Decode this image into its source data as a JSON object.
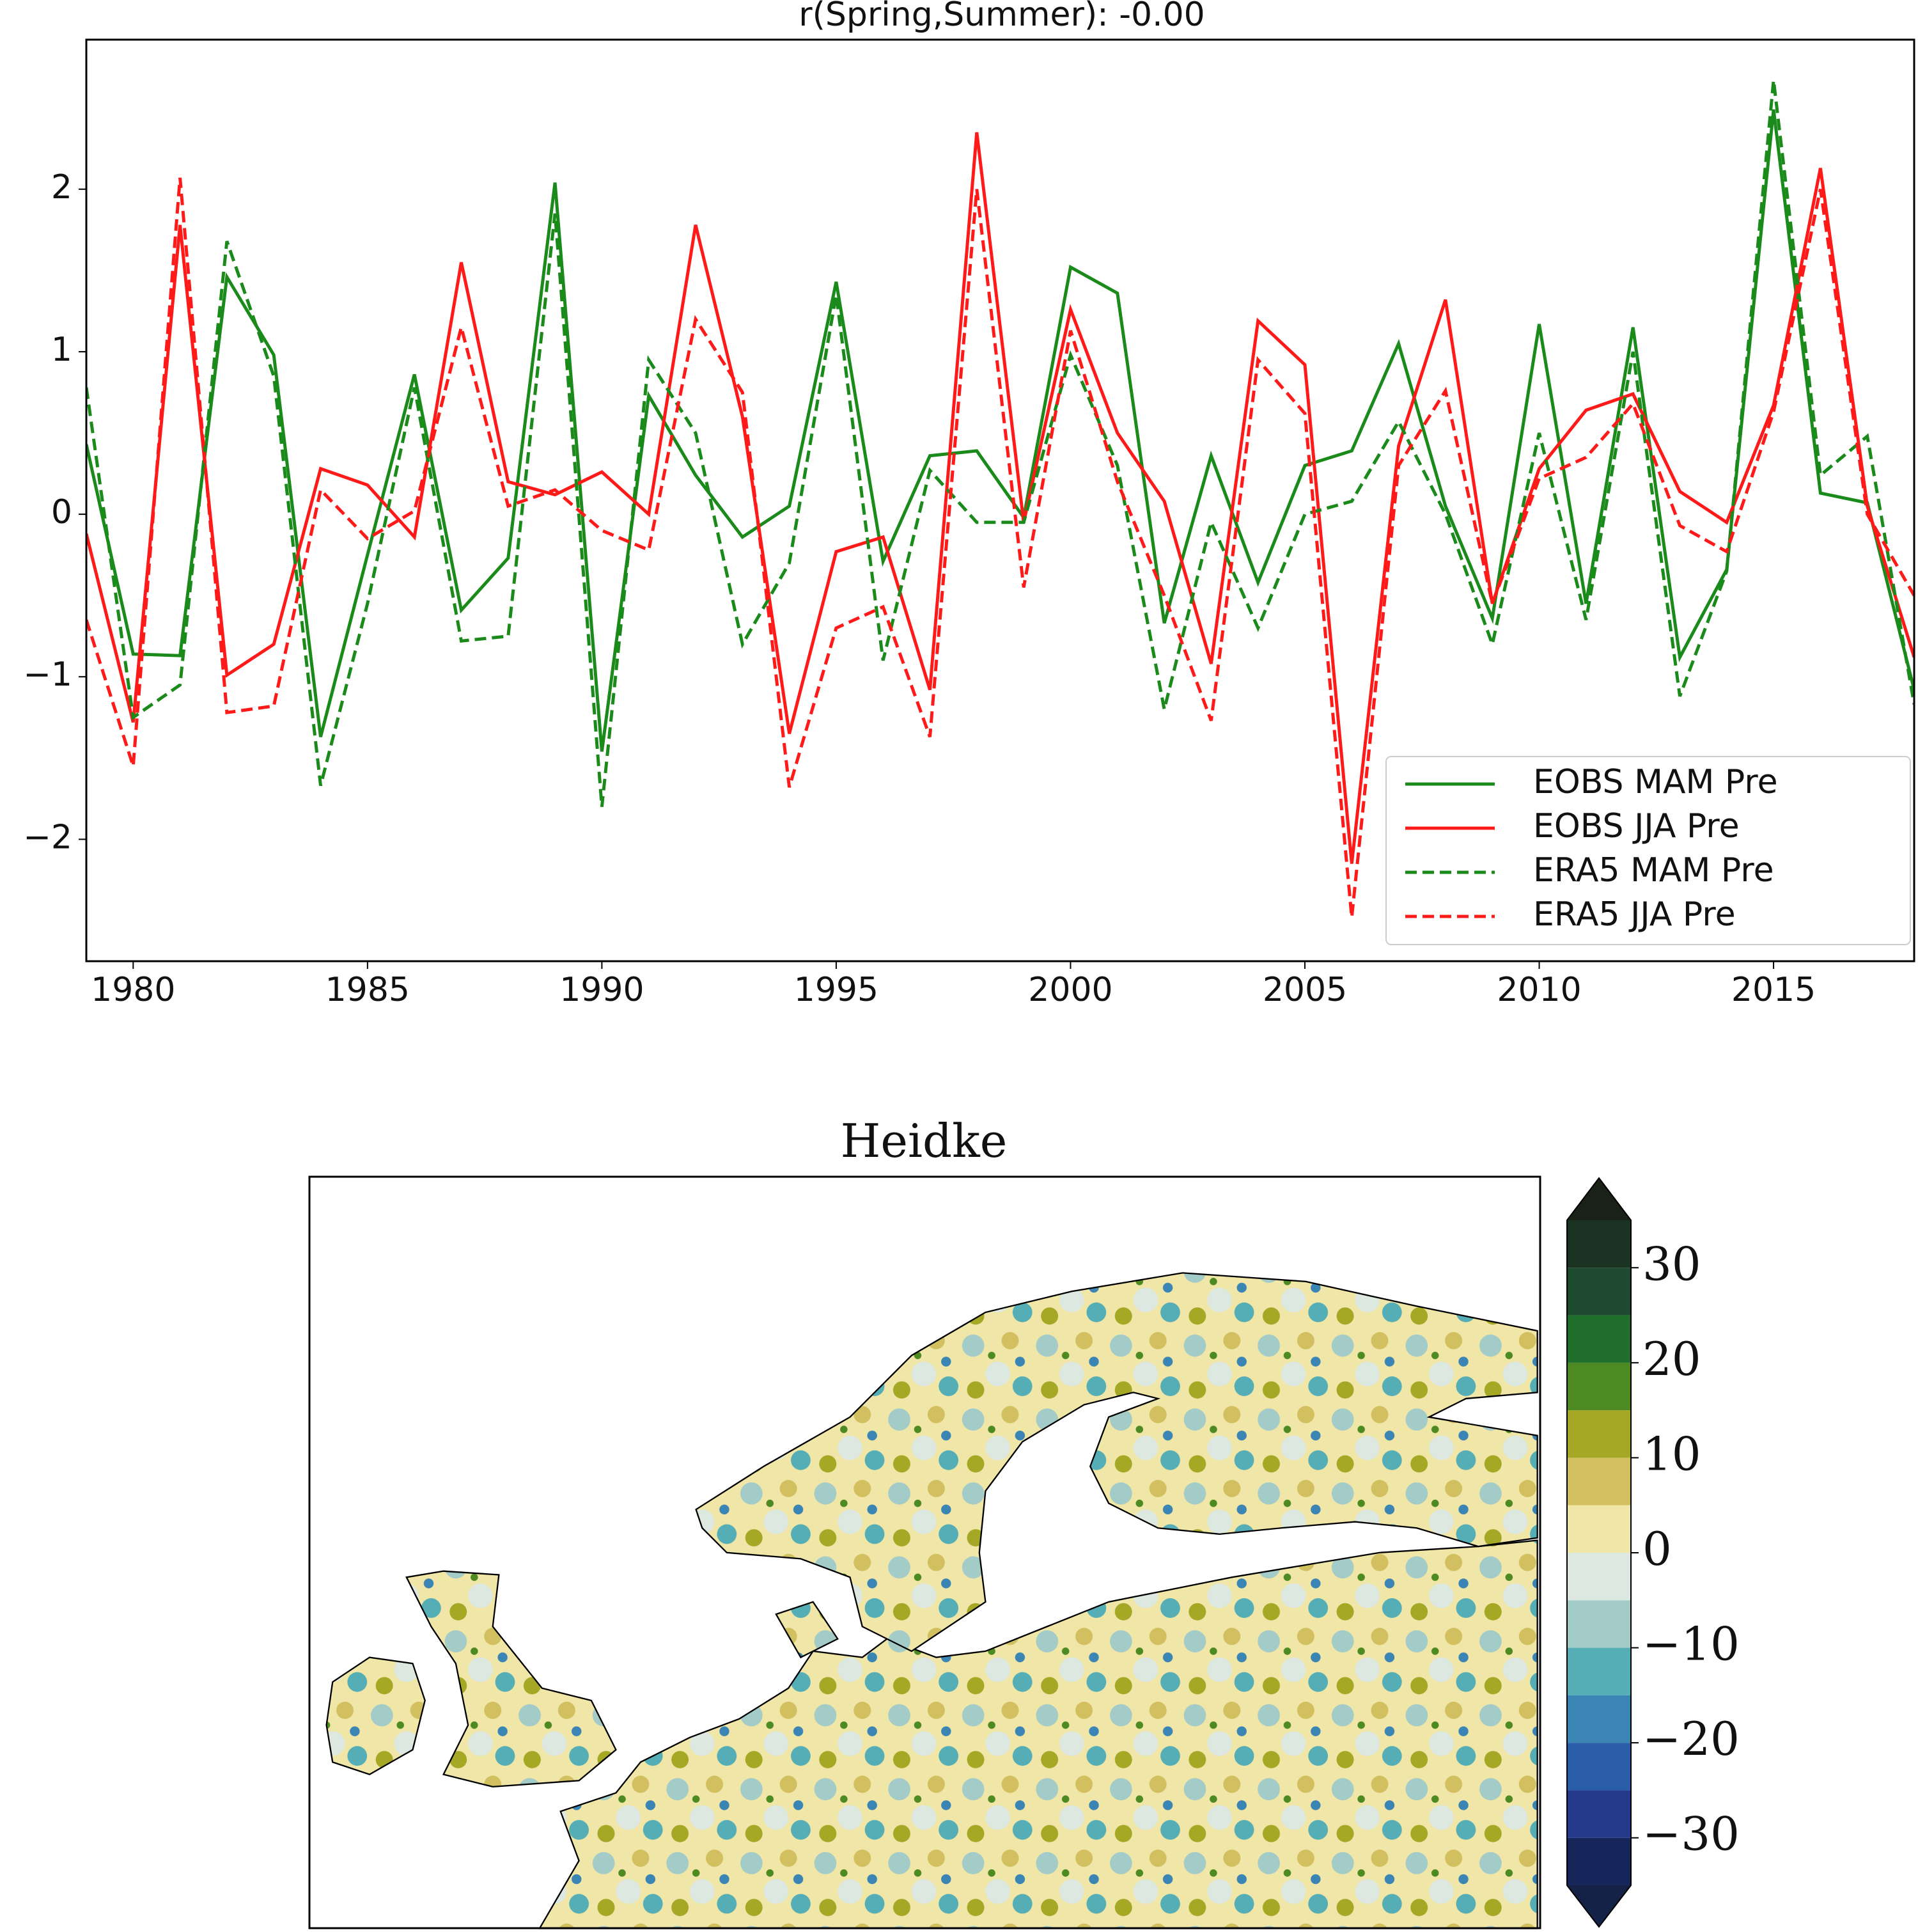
{
  "chart_data": [
    {
      "type": "line",
      "title": "r(Spring,Summer): -0.00",
      "x": [
        1979,
        1980,
        1981,
        1982,
        1983,
        1984,
        1985,
        1986,
        1987,
        1988,
        1989,
        1990,
        1991,
        1992,
        1993,
        1994,
        1995,
        1996,
        1997,
        1998,
        1999,
        2000,
        2001,
        2002,
        2003,
        2004,
        2005,
        2006,
        2007,
        2008,
        2009,
        2010,
        2011,
        2012,
        2013,
        2014,
        2015,
        2016,
        2017,
        2018
      ],
      "xlim": [
        1979,
        2018
      ],
      "xticks": [
        1980,
        1985,
        1990,
        1995,
        2000,
        2005,
        2010,
        2015
      ],
      "ylim": [
        -2.75,
        2.92
      ],
      "yticks": [
        {
          "value": -2,
          "label": "−2"
        },
        {
          "value": -1,
          "label": "−1"
        },
        0,
        1,
        2
      ],
      "legend": "lower right",
      "series": [
        {
          "name": "EOBS MAM Pre",
          "color": "#1a8a1a",
          "linestyle": "solid",
          "values": [
            0.43,
            -0.86,
            -0.87,
            1.46,
            0.98,
            -1.37,
            -0.25,
            0.86,
            -0.59,
            -0.27,
            2.04,
            -1.46,
            0.73,
            0.24,
            -0.14,
            0.05,
            1.43,
            -0.29,
            0.36,
            0.39,
            -0.02,
            1.52,
            1.36,
            -0.67,
            0.36,
            -0.42,
            0.3,
            0.39,
            1.05,
            0.05,
            -0.64,
            1.17,
            -0.55,
            1.15,
            -0.88,
            -0.34,
            2.49,
            0.13,
            0.07,
            -1.08
          ]
        },
        {
          "name": "EOBS JJA Pre",
          "color": "#ff1a1a",
          "linestyle": "solid",
          "values": [
            -0.12,
            -1.28,
            1.78,
            -0.99,
            -0.8,
            0.28,
            0.18,
            -0.14,
            1.55,
            0.2,
            0.12,
            0.26,
            0.0,
            1.78,
            0.6,
            -1.35,
            -0.23,
            -0.14,
            -1.08,
            2.35,
            -0.05,
            1.26,
            0.5,
            0.08,
            -0.92,
            1.19,
            0.92,
            -2.15,
            0.42,
            1.32,
            -0.55,
            0.28,
            0.64,
            0.74,
            0.14,
            -0.05,
            0.67,
            2.13,
            0.05,
            -0.88
          ]
        },
        {
          "name": "ERA5 MAM Pre",
          "color": "#1a8a1a",
          "linestyle": "dashed",
          "values": [
            0.78,
            -1.25,
            -1.05,
            1.68,
            0.85,
            -1.67,
            -0.55,
            0.78,
            -0.78,
            -0.75,
            1.85,
            -1.8,
            0.95,
            0.5,
            -0.8,
            -0.3,
            1.35,
            -0.9,
            0.27,
            -0.05,
            -0.05,
            0.98,
            0.3,
            -1.2,
            -0.05,
            -0.7,
            0.0,
            0.08,
            0.57,
            0.0,
            -0.8,
            0.5,
            -0.65,
            1.0,
            -1.12,
            -0.35,
            2.67,
            0.24,
            0.48,
            -1.17
          ]
        },
        {
          "name": "ERA5 JJA Pre",
          "color": "#ff1a1a",
          "linestyle": "dashed",
          "values": [
            -0.65,
            -1.55,
            2.07,
            -1.22,
            -1.18,
            0.15,
            -0.15,
            0.02,
            1.15,
            0.05,
            0.15,
            -0.1,
            -0.22,
            1.2,
            0.75,
            -1.68,
            -0.7,
            -0.57,
            -1.37,
            2.0,
            -0.45,
            1.13,
            0.2,
            -0.5,
            -1.27,
            0.95,
            0.62,
            -2.48,
            0.3,
            0.76,
            -0.55,
            0.22,
            0.35,
            0.68,
            -0.07,
            -0.23,
            0.63,
            2.0,
            0.0,
            -0.5
          ]
        }
      ]
    },
    {
      "type": "map",
      "title": "Heidke",
      "colorbar": {
        "levels": [
          -35,
          -30,
          -25,
          -20,
          -15,
          -10,
          -5,
          0,
          5,
          10,
          15,
          20,
          25,
          30,
          35
        ],
        "colors": [
          "#17265a",
          "#253a8a",
          "#2b5ea8",
          "#3a85b4",
          "#55aeb6",
          "#a3cbc8",
          "#dde8e0",
          "#f0e6a8",
          "#d2c060",
          "#a4a825",
          "#4e8a22",
          "#1f6e2c",
          "#1e4a30",
          "#1b3322"
        ],
        "under_color": "#142248",
        "over_color": "#1a2117",
        "ticks": [
          {
            "value": -30,
            "label": "−30"
          },
          {
            "value": -20,
            "label": "−20"
          },
          {
            "value": -10,
            "label": "−10"
          },
          0,
          10,
          20,
          30
        ]
      }
    }
  ]
}
